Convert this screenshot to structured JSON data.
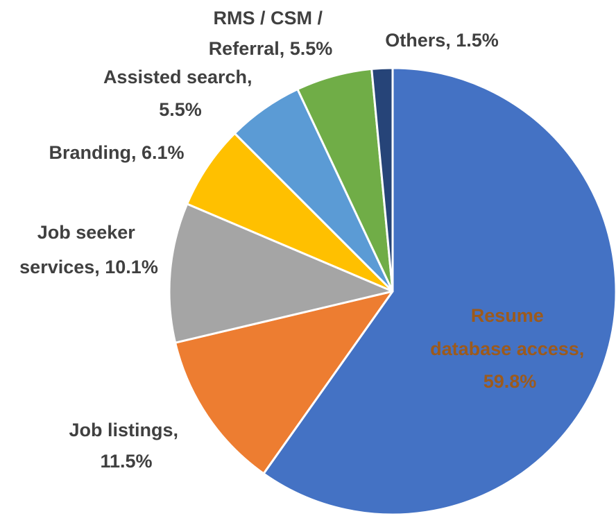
{
  "chart_data": {
    "type": "pie",
    "labels": [
      "Resume database access, 59.8%",
      "Job listings, 11.5%",
      "Job seeker services, 10.1%",
      "Branding, 6.1%",
      "Assisted search, 5.5%",
      "RMS / CSM / Referral, 5.5%",
      "Others, 1.5%"
    ],
    "values": [
      59.8,
      11.5,
      10.1,
      6.1,
      5.5,
      5.5,
      1.5
    ],
    "colors": [
      "#4472c4",
      "#ed7d31",
      "#a5a5a5",
      "#ffc000",
      "#5b9bd5",
      "#70ad47",
      "#264478"
    ]
  }
}
